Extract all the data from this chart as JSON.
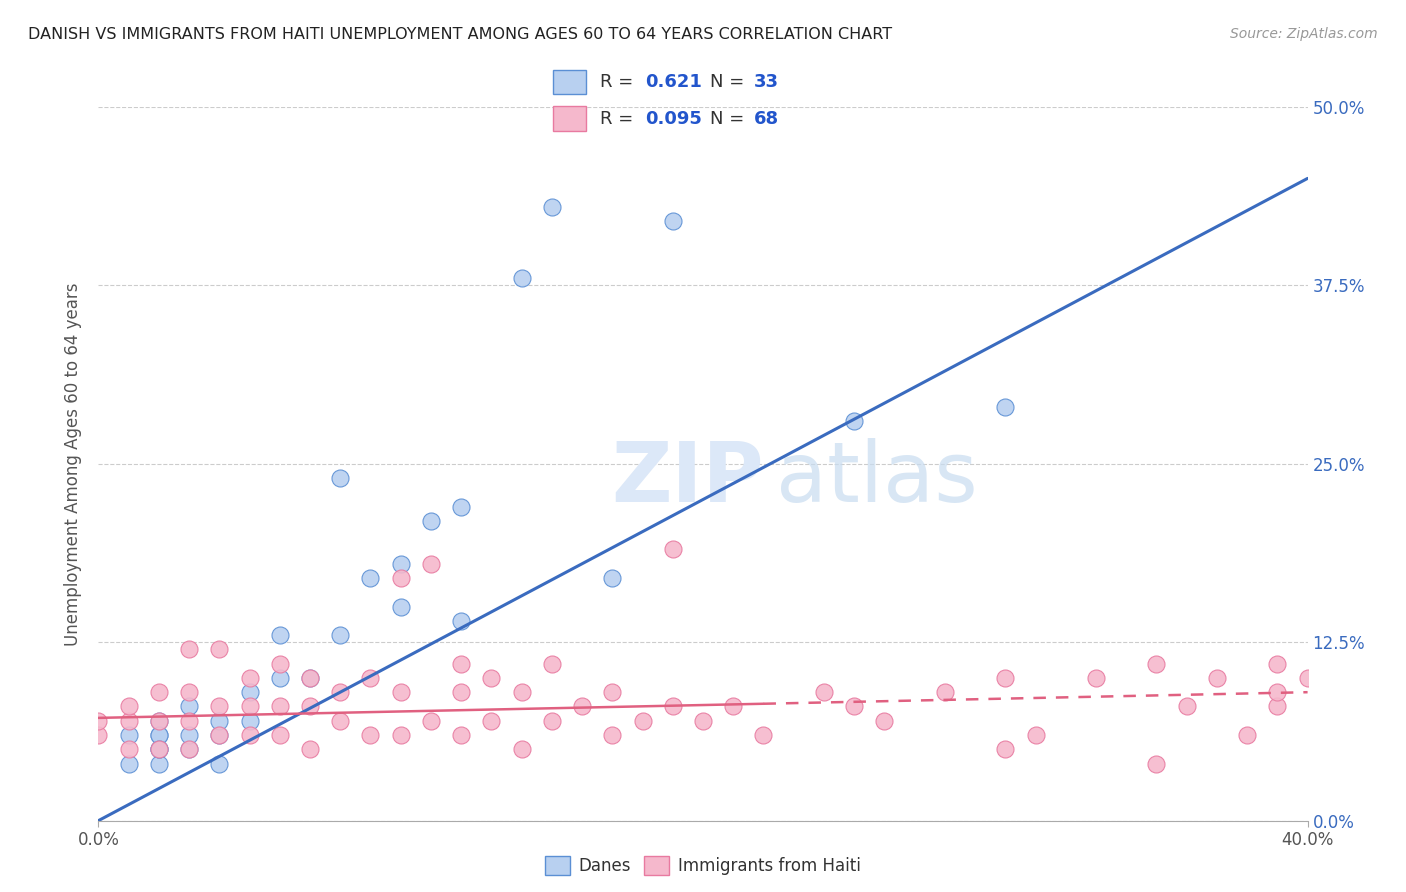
{
  "title": "DANISH VS IMMIGRANTS FROM HAITI UNEMPLOYMENT AMONG AGES 60 TO 64 YEARS CORRELATION CHART",
  "source": "Source: ZipAtlas.com",
  "ylabel": "Unemployment Among Ages 60 to 64 years",
  "danes_R": 0.621,
  "danes_N": 33,
  "haiti_R": 0.095,
  "haiti_N": 68,
  "danes_color": "#b8d0f0",
  "haiti_color": "#f5b8cc",
  "danes_edge_color": "#5b8fd4",
  "haiti_edge_color": "#e87aa0",
  "danes_line_color": "#3a6bbf",
  "haiti_line_color": "#e06080",
  "watermark_color": "#dce8f8",
  "legend_label_danes": "Danes",
  "legend_label_haiti": "Immigrants from Haiti",
  "danes_scatter_x": [
    0.01,
    0.01,
    0.02,
    0.02,
    0.02,
    0.02,
    0.02,
    0.02,
    0.03,
    0.03,
    0.03,
    0.04,
    0.04,
    0.04,
    0.05,
    0.05,
    0.06,
    0.06,
    0.07,
    0.08,
    0.08,
    0.09,
    0.1,
    0.1,
    0.11,
    0.12,
    0.12,
    0.14,
    0.15,
    0.17,
    0.19,
    0.25,
    0.3
  ],
  "danes_scatter_y": [
    0.04,
    0.06,
    0.04,
    0.05,
    0.06,
    0.07,
    0.06,
    0.05,
    0.05,
    0.06,
    0.08,
    0.04,
    0.06,
    0.07,
    0.07,
    0.09,
    0.1,
    0.13,
    0.1,
    0.13,
    0.24,
    0.17,
    0.18,
    0.15,
    0.21,
    0.22,
    0.14,
    0.38,
    0.43,
    0.17,
    0.42,
    0.28,
    0.29
  ],
  "haiti_scatter_x": [
    0.0,
    0.0,
    0.01,
    0.01,
    0.01,
    0.02,
    0.02,
    0.02,
    0.03,
    0.03,
    0.03,
    0.03,
    0.04,
    0.04,
    0.04,
    0.05,
    0.05,
    0.05,
    0.06,
    0.06,
    0.06,
    0.07,
    0.07,
    0.07,
    0.08,
    0.08,
    0.09,
    0.09,
    0.1,
    0.1,
    0.1,
    0.11,
    0.11,
    0.12,
    0.12,
    0.12,
    0.13,
    0.13,
    0.14,
    0.14,
    0.15,
    0.15,
    0.16,
    0.17,
    0.17,
    0.18,
    0.19,
    0.19,
    0.2,
    0.21,
    0.22,
    0.24,
    0.25,
    0.26,
    0.28,
    0.3,
    0.3,
    0.31,
    0.33,
    0.35,
    0.35,
    0.36,
    0.37,
    0.38,
    0.39,
    0.39,
    0.39,
    0.4
  ],
  "haiti_scatter_y": [
    0.06,
    0.07,
    0.05,
    0.07,
    0.08,
    0.05,
    0.07,
    0.09,
    0.05,
    0.07,
    0.09,
    0.12,
    0.06,
    0.08,
    0.12,
    0.06,
    0.08,
    0.1,
    0.06,
    0.08,
    0.11,
    0.05,
    0.08,
    0.1,
    0.07,
    0.09,
    0.06,
    0.1,
    0.06,
    0.09,
    0.17,
    0.07,
    0.18,
    0.06,
    0.09,
    0.11,
    0.07,
    0.1,
    0.05,
    0.09,
    0.07,
    0.11,
    0.08,
    0.06,
    0.09,
    0.07,
    0.08,
    0.19,
    0.07,
    0.08,
    0.06,
    0.09,
    0.08,
    0.07,
    0.09,
    0.1,
    0.05,
    0.06,
    0.1,
    0.04,
    0.11,
    0.08,
    0.1,
    0.06,
    0.08,
    0.09,
    0.11,
    0.1
  ],
  "danes_line_x": [
    0.0,
    0.4
  ],
  "danes_line_y": [
    0.0,
    0.45
  ],
  "haiti_line_x": [
    0.0,
    0.4
  ],
  "haiti_line_y": [
    0.072,
    0.09
  ],
  "xlim": [
    0.0,
    0.4
  ],
  "ylim": [
    0.0,
    0.5
  ],
  "ytick_vals": [
    0.0,
    0.125,
    0.25,
    0.375,
    0.5
  ],
  "ytick_labels": [
    "0.0%",
    "12.5%",
    "25.0%",
    "37.5%",
    "50.0%"
  ]
}
